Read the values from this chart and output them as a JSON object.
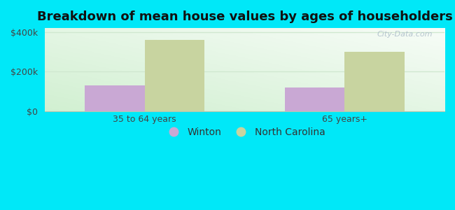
{
  "title": "Breakdown of mean house values by ages of householders",
  "categories": [
    "35 to 64 years",
    "65 years+"
  ],
  "winton_values": [
    130000,
    120000
  ],
  "nc_values": [
    360000,
    300000
  ],
  "winton_color": "#c9a8d4",
  "nc_color": "#c8d4a0",
  "background_color": "#00e8f8",
  "plot_bg_top": "#f5fdf5",
  "plot_bg_bottom": "#d8f2d8",
  "ylim": [
    0,
    420000
  ],
  "yticks": [
    0,
    200000,
    400000
  ],
  "ytick_labels": [
    "$0",
    "$200k",
    "$400k"
  ],
  "legend_labels": [
    "Winton",
    "North Carolina"
  ],
  "bar_width": 0.3,
  "title_fontsize": 13,
  "tick_fontsize": 9,
  "legend_fontsize": 10,
  "watermark_text": "City-Data.com",
  "watermark_color": "#aabbc8",
  "grid_color": "#d0e8d0",
  "spine_color": "#b0c8b0"
}
